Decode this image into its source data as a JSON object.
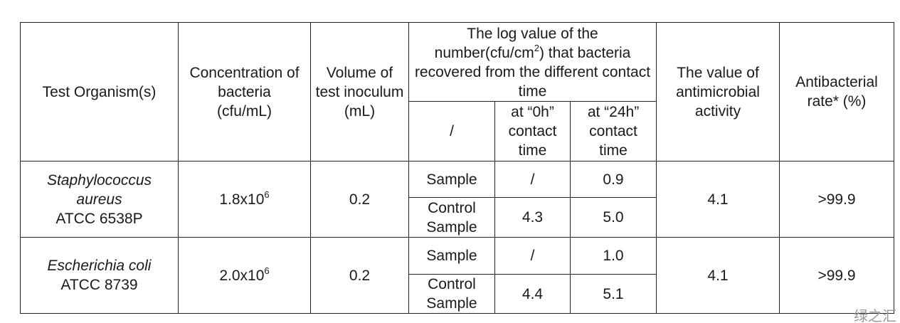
{
  "table": {
    "header": {
      "organism": "Test Organism(s)",
      "concentration": "Concentration of bacteria (cfu/mL)",
      "volume": "Volume of test inoculum (mL)",
      "log_value": {
        "before": "The log value of the number(cfu/cm",
        "sup": "2",
        "after": ") that bacteria recovered from the different contact time"
      },
      "sub": [
        "/",
        "at “0h” contact time",
        "at “24h” contact time"
      ],
      "activity": "The value of antimicrobial activity",
      "rate": "Antibacterial rate* (%)"
    },
    "rows": [
      {
        "organism": {
          "species": "Staphylococcus aureus",
          "strain": "ATCC 6538P"
        },
        "concentration": {
          "base": "1.8x10",
          "exp": "6"
        },
        "volume": "0.2",
        "subrows": [
          [
            "Sample",
            "/",
            "0.9"
          ],
          [
            "Control Sample",
            "4.3",
            "5.0"
          ]
        ],
        "activity": "4.1",
        "rate": ">99.9"
      },
      {
        "organism": {
          "species": "Escherichia coli",
          "strain": "ATCC 8739"
        },
        "concentration": {
          "base": "2.0x10",
          "exp": "6"
        },
        "volume": "0.2",
        "subrows": [
          [
            "Sample",
            "/",
            "1.0"
          ],
          [
            "Control Sample",
            "4.4",
            "5.1"
          ]
        ],
        "activity": "4.1",
        "rate": ">99.9"
      }
    ]
  },
  "watermark": "绿之汇"
}
